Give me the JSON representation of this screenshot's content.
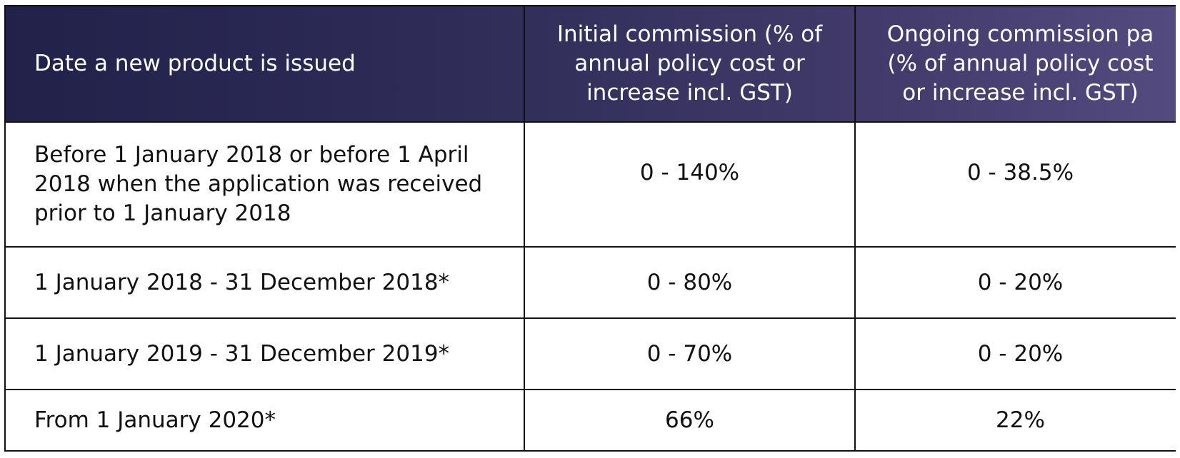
{
  "table": {
    "headers": [
      "Date a new product is issued",
      "Initial commission (% of annual policy cost or increase incl. GST)",
      "Ongoing commission pa (% of annual policy cost or increase incl. GST)"
    ],
    "header_lines": {
      "col1": [
        "Date a new product is issued"
      ],
      "col2": [
        "Initial commission (% of",
        "annual policy cost or",
        "increase incl. GST)"
      ],
      "col3": [
        "Ongoing commission pa",
        "(% of annual policy cost",
        "or increase incl. GST)"
      ]
    },
    "rows": [
      {
        "date": "Before 1 January 2018 or before 1 April 2018 when the application was received prior to 1 January 2018",
        "initial": "0 - 140%",
        "ongoing": "0 - 38.5%"
      },
      {
        "date": "1 January 2018 - 31 December 2018*",
        "initial": "0 - 80%",
        "ongoing": "0 - 20%"
      },
      {
        "date": "1 January 2019 - 31 December 2019*",
        "initial": "0 - 70%",
        "ongoing": "0 - 20%"
      },
      {
        "date": "From 1 January 2020*",
        "initial": "66%",
        "ongoing": "22%"
      }
    ]
  },
  "colors": {
    "header_start": "#21214a",
    "header_end": "#544b7f",
    "header_text": "#ffffff",
    "border": "#111111",
    "body_text": "#111111"
  }
}
